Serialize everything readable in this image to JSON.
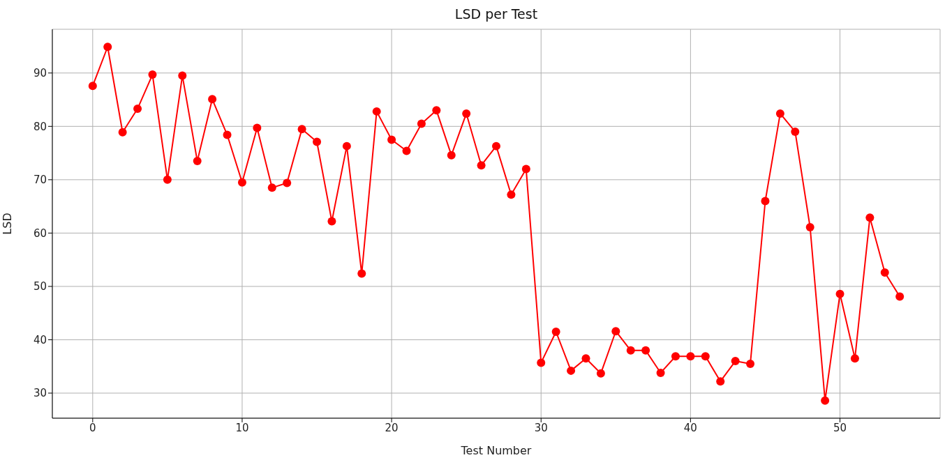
{
  "chart_data": {
    "type": "line",
    "title": "LSD per Test",
    "xlabel": "Test Number",
    "ylabel": "LSD",
    "x": [
      0,
      1,
      2,
      3,
      4,
      5,
      6,
      7,
      8,
      9,
      10,
      11,
      12,
      13,
      14,
      15,
      16,
      17,
      18,
      19,
      20,
      21,
      22,
      23,
      24,
      25,
      26,
      27,
      28,
      29,
      30,
      31,
      32,
      33,
      34,
      35,
      36,
      37,
      38,
      39,
      40,
      41,
      42,
      43,
      44,
      45,
      46,
      47,
      48,
      49,
      50,
      51,
      52,
      53,
      54
    ],
    "series": [
      {
        "color": "#ff0000",
        "values": [
          87.6,
          94.9,
          78.9,
          83.3,
          89.7,
          70.0,
          89.5,
          73.5,
          85.1,
          78.4,
          69.5,
          79.7,
          68.5,
          69.4,
          79.5,
          77.1,
          62.2,
          76.3,
          52.4,
          82.8,
          77.5,
          75.4,
          80.5,
          83.0,
          74.6,
          82.4,
          72.7,
          76.3,
          67.2,
          72.0,
          35.7,
          41.5,
          34.2,
          36.5,
          33.7,
          41.6,
          38.0,
          38.0,
          33.8,
          36.9,
          36.9,
          36.9,
          32.2,
          36.0,
          35.5,
          66.0,
          82.4,
          79.0,
          61.1,
          28.6,
          48.6,
          36.5,
          62.9,
          52.6,
          48.1
        ]
      }
    ],
    "xlim": [
      -2.7,
      56.7
    ],
    "ylim": [
      25.3,
      98.2
    ],
    "xticks": [
      0,
      10,
      20,
      30,
      40,
      50
    ],
    "yticks": [
      30,
      40,
      50,
      60,
      70,
      80,
      90
    ],
    "grid": true,
    "marker": "circle",
    "line_style": "solid",
    "legend": false
  }
}
